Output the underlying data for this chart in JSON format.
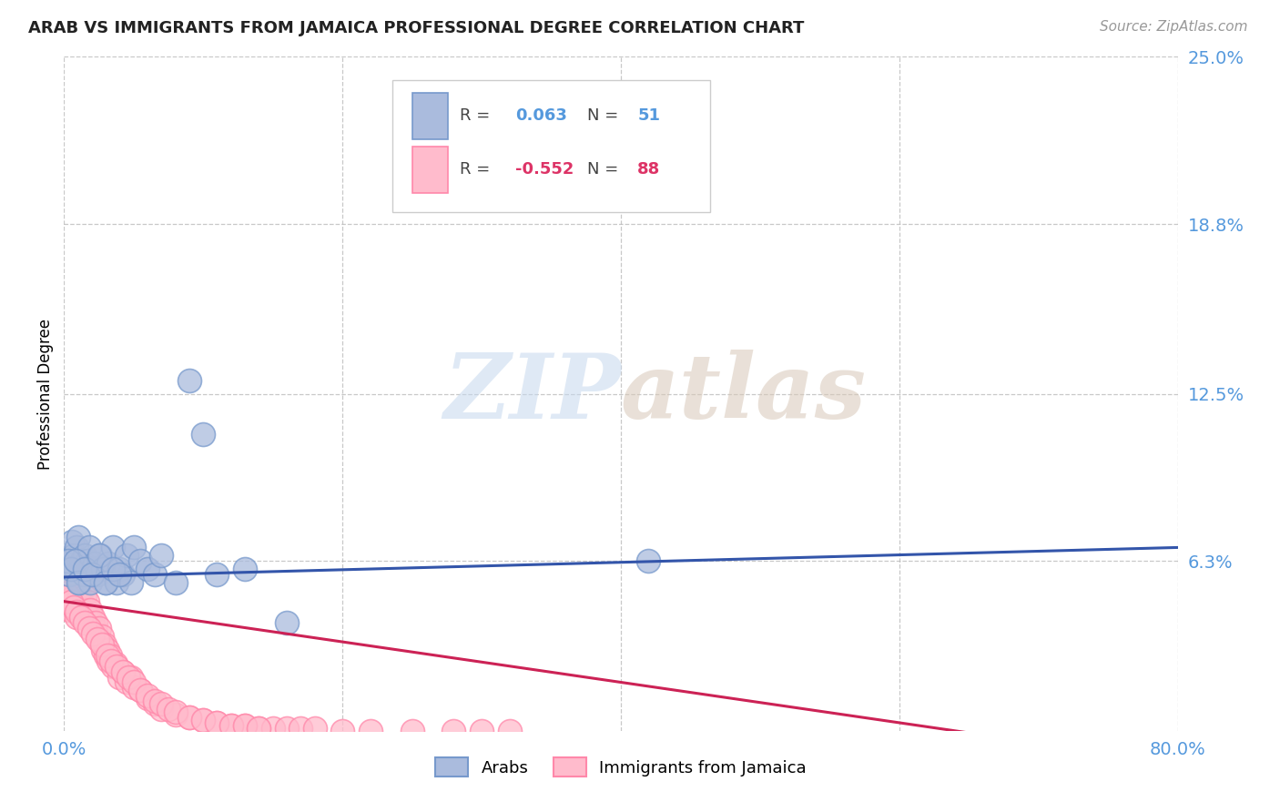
{
  "title": "ARAB VS IMMIGRANTS FROM JAMAICA PROFESSIONAL DEGREE CORRELATION CHART",
  "source": "Source: ZipAtlas.com",
  "ylabel": "Professional Degree",
  "xlim": [
    0.0,
    0.8
  ],
  "ylim": [
    0.0,
    0.25
  ],
  "ytick_positions": [
    0.063,
    0.125,
    0.188,
    0.25
  ],
  "ytick_labels": [
    "6.3%",
    "12.5%",
    "18.8%",
    "25.0%"
  ],
  "grid_color": "#bbbbbb",
  "bg_color": "#ffffff",
  "arab_color": "#7799cc",
  "arab_color_fill": "#aabbdd",
  "jamaica_color": "#ff88aa",
  "jamaica_color_fill": "#ffbbcc",
  "arab_R": 0.063,
  "arab_N": 51,
  "jamaica_R": -0.552,
  "jamaica_N": 88,
  "watermark_zip": "ZIP",
  "watermark_atlas": "atlas",
  "legend_label_arab": "Arabs",
  "legend_label_jamaica": "Immigrants from Jamaica",
  "arab_line_color": "#3355aa",
  "jamaica_line_color": "#cc2255",
  "arab_text_color": "#5599dd",
  "jamaica_text_color": "#dd3366",
  "arab_scatter_x": [
    0.002,
    0.004,
    0.006,
    0.007,
    0.008,
    0.009,
    0.01,
    0.011,
    0.012,
    0.013,
    0.014,
    0.015,
    0.016,
    0.017,
    0.018,
    0.019,
    0.02,
    0.022,
    0.024,
    0.026,
    0.028,
    0.03,
    0.032,
    0.035,
    0.038,
    0.04,
    0.042,
    0.045,
    0.048,
    0.05,
    0.055,
    0.06,
    0.065,
    0.07,
    0.08,
    0.09,
    0.1,
    0.11,
    0.13,
    0.16,
    0.003,
    0.005,
    0.008,
    0.01,
    0.015,
    0.02,
    0.025,
    0.03,
    0.035,
    0.04,
    0.42
  ],
  "arab_scatter_y": [
    0.062,
    0.058,
    0.07,
    0.065,
    0.06,
    0.068,
    0.072,
    0.055,
    0.06,
    0.063,
    0.058,
    0.065,
    0.06,
    0.063,
    0.068,
    0.055,
    0.06,
    0.062,
    0.058,
    0.065,
    0.06,
    0.055,
    0.062,
    0.068,
    0.055,
    0.06,
    0.058,
    0.065,
    0.055,
    0.068,
    0.063,
    0.06,
    0.058,
    0.065,
    0.055,
    0.13,
    0.11,
    0.058,
    0.06,
    0.04,
    0.063,
    0.06,
    0.063,
    0.055,
    0.06,
    0.058,
    0.065,
    0.055,
    0.06,
    0.058,
    0.063
  ],
  "jamaica_scatter_x": [
    0.002,
    0.003,
    0.004,
    0.005,
    0.006,
    0.007,
    0.008,
    0.009,
    0.01,
    0.011,
    0.012,
    0.013,
    0.014,
    0.015,
    0.016,
    0.017,
    0.018,
    0.019,
    0.02,
    0.021,
    0.022,
    0.023,
    0.024,
    0.025,
    0.026,
    0.027,
    0.028,
    0.029,
    0.03,
    0.031,
    0.032,
    0.033,
    0.035,
    0.037,
    0.04,
    0.042,
    0.045,
    0.048,
    0.05,
    0.055,
    0.06,
    0.065,
    0.07,
    0.08,
    0.09,
    0.1,
    0.11,
    0.12,
    0.13,
    0.14,
    0.15,
    0.16,
    0.17,
    0.18,
    0.2,
    0.22,
    0.25,
    0.28,
    0.3,
    0.32,
    0.003,
    0.005,
    0.007,
    0.009,
    0.012,
    0.015,
    0.018,
    0.021,
    0.024,
    0.027,
    0.031,
    0.034,
    0.038,
    0.042,
    0.046,
    0.05,
    0.055,
    0.06,
    0.065,
    0.07,
    0.075,
    0.08,
    0.09,
    0.1,
    0.11,
    0.12,
    0.13,
    0.14
  ],
  "jamaica_scatter_y": [
    0.048,
    0.05,
    0.045,
    0.052,
    0.048,
    0.05,
    0.045,
    0.042,
    0.048,
    0.05,
    0.045,
    0.048,
    0.042,
    0.05,
    0.045,
    0.048,
    0.042,
    0.045,
    0.04,
    0.042,
    0.038,
    0.04,
    0.035,
    0.038,
    0.033,
    0.035,
    0.03,
    0.032,
    0.028,
    0.03,
    0.026,
    0.028,
    0.024,
    0.025,
    0.02,
    0.022,
    0.018,
    0.02,
    0.016,
    0.015,
    0.012,
    0.01,
    0.008,
    0.006,
    0.005,
    0.004,
    0.003,
    0.002,
    0.002,
    0.001,
    0.001,
    0.001,
    0.001,
    0.001,
    0.0,
    0.0,
    0.0,
    0.0,
    0.0,
    0.0,
    0.05,
    0.048,
    0.046,
    0.044,
    0.042,
    0.04,
    0.038,
    0.036,
    0.034,
    0.032,
    0.028,
    0.026,
    0.024,
    0.022,
    0.02,
    0.018,
    0.015,
    0.013,
    0.011,
    0.01,
    0.008,
    0.007,
    0.005,
    0.004,
    0.003,
    0.002,
    0.002,
    0.001
  ]
}
